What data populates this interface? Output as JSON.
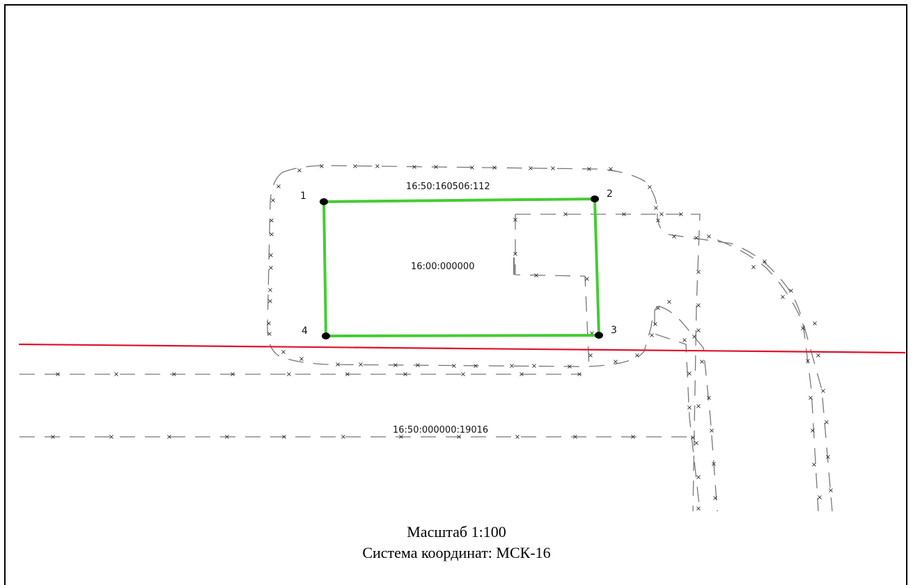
{
  "map": {
    "parcel_label": "16:50:160506:112",
    "inner_label": "16:00:000000",
    "road_label": "16:50:000000:19016",
    "points": [
      "1",
      "2",
      "3",
      "4"
    ],
    "colors": {
      "parcel": "#44cc33",
      "red_line": "#e0102a",
      "dashed": "#777777",
      "marker": "#000000"
    }
  },
  "footer": {
    "scale": "Масштаб 1:100",
    "crs": "Система координат: МСК-16"
  }
}
